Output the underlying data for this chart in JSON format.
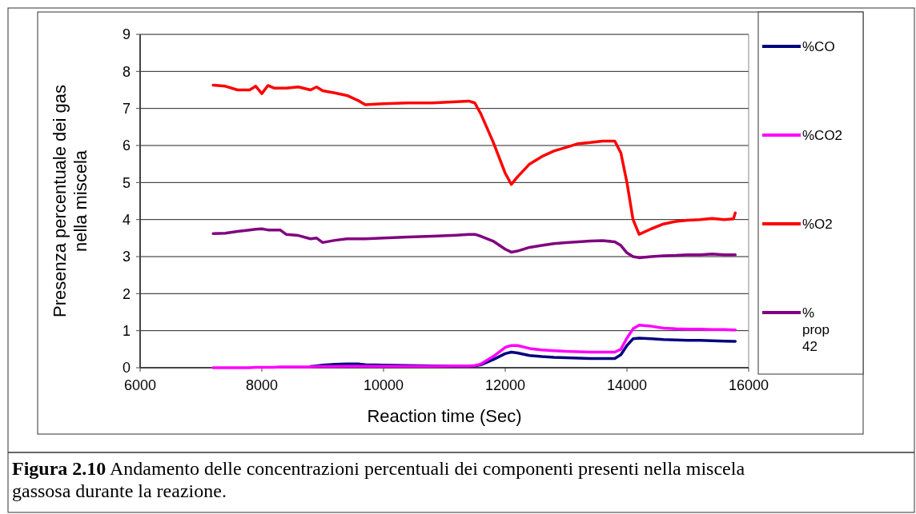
{
  "chart_data": {
    "type": "line",
    "xlabel": "Reaction time (Sec)",
    "ylabel": "Presenza percentuale dei gas nella miscela",
    "x": [
      7200,
      7400,
      7600,
      7800,
      7900,
      8000,
      8100,
      8200,
      8300,
      8400,
      8600,
      8800,
      8900,
      9000,
      9200,
      9400,
      9600,
      9700,
      10000,
      10400,
      10800,
      11200,
      11400,
      11500,
      11600,
      11800,
      12000,
      12100,
      12200,
      12400,
      12600,
      12800,
      13000,
      13200,
      13400,
      13600,
      13800,
      13900,
      14000,
      14100,
      14200,
      14400,
      14600,
      14800,
      15000,
      15200,
      15400,
      15600,
      15750,
      15780
    ],
    "series": [
      {
        "name": "%CO",
        "color": "#000080",
        "values": [
          null,
          null,
          null,
          null,
          null,
          null,
          null,
          null,
          null,
          null,
          null,
          0.03,
          0.05,
          0.07,
          0.09,
          0.1,
          0.1,
          0.08,
          0.07,
          0.06,
          0.05,
          0.05,
          0.05,
          0.05,
          0.08,
          0.22,
          0.38,
          0.42,
          0.4,
          0.33,
          0.3,
          0.28,
          0.27,
          0.26,
          0.25,
          0.25,
          0.25,
          0.35,
          0.6,
          0.78,
          0.8,
          0.78,
          0.76,
          0.75,
          0.74,
          0.74,
          0.73,
          0.72,
          0.71,
          0.71
        ]
      },
      {
        "name": "%CO2",
        "color": "#ff00ff",
        "values": [
          0,
          0,
          0,
          0,
          0.01,
          0.01,
          0.01,
          0.01,
          0.02,
          0.02,
          0.02,
          0.02,
          0.03,
          0.03,
          0.03,
          0.04,
          0.04,
          0.04,
          0.04,
          0.04,
          0.04,
          0.05,
          0.05,
          0.06,
          0.1,
          0.3,
          0.55,
          0.6,
          0.6,
          0.52,
          0.48,
          0.46,
          0.44,
          0.43,
          0.42,
          0.42,
          0.42,
          0.5,
          0.8,
          1.05,
          1.15,
          1.12,
          1.07,
          1.05,
          1.04,
          1.04,
          1.03,
          1.03,
          1.02,
          1.02
        ]
      },
      {
        "name": "%O2",
        "color": "#ff0000",
        "values": [
          7.63,
          7.6,
          7.5,
          7.5,
          7.6,
          7.4,
          7.62,
          7.55,
          7.55,
          7.55,
          7.58,
          7.5,
          7.58,
          7.48,
          7.42,
          7.35,
          7.2,
          7.1,
          7.13,
          7.15,
          7.15,
          7.18,
          7.2,
          7.15,
          6.85,
          6.1,
          5.25,
          4.95,
          5.15,
          5.5,
          5.7,
          5.85,
          5.95,
          6.05,
          6.08,
          6.12,
          6.12,
          5.8,
          5.0,
          4.0,
          3.6,
          3.75,
          3.88,
          3.95,
          3.98,
          4.0,
          4.03,
          4.0,
          4.02,
          4.18
        ]
      },
      {
        "name": "% prop 42",
        "color": "#800080",
        "values": [
          3.62,
          3.63,
          3.68,
          3.72,
          3.74,
          3.75,
          3.72,
          3.72,
          3.72,
          3.6,
          3.57,
          3.48,
          3.5,
          3.38,
          3.44,
          3.48,
          3.48,
          3.48,
          3.5,
          3.53,
          3.55,
          3.58,
          3.6,
          3.6,
          3.55,
          3.42,
          3.2,
          3.12,
          3.15,
          3.25,
          3.3,
          3.35,
          3.38,
          3.4,
          3.42,
          3.43,
          3.4,
          3.3,
          3.1,
          3.0,
          2.97,
          3.0,
          3.02,
          3.03,
          3.05,
          3.05,
          3.07,
          3.05,
          3.05,
          3.05
        ]
      }
    ],
    "xlim": [
      6000,
      16000
    ],
    "xticks": [
      6000,
      8000,
      10000,
      12000,
      14000,
      16000
    ],
    "ylim": [
      0,
      9
    ],
    "yticks": [
      0,
      1,
      2,
      3,
      4,
      5,
      6,
      7,
      8,
      9
    ],
    "grid": "y",
    "legend": "right",
    "line_style": "solid",
    "marker": "none",
    "annotations": [
      "Figura 2.10 Andamento delle concentrazioni percentuali dei componenti presenti nella miscela gassosa durante la reazione."
    ]
  }
}
